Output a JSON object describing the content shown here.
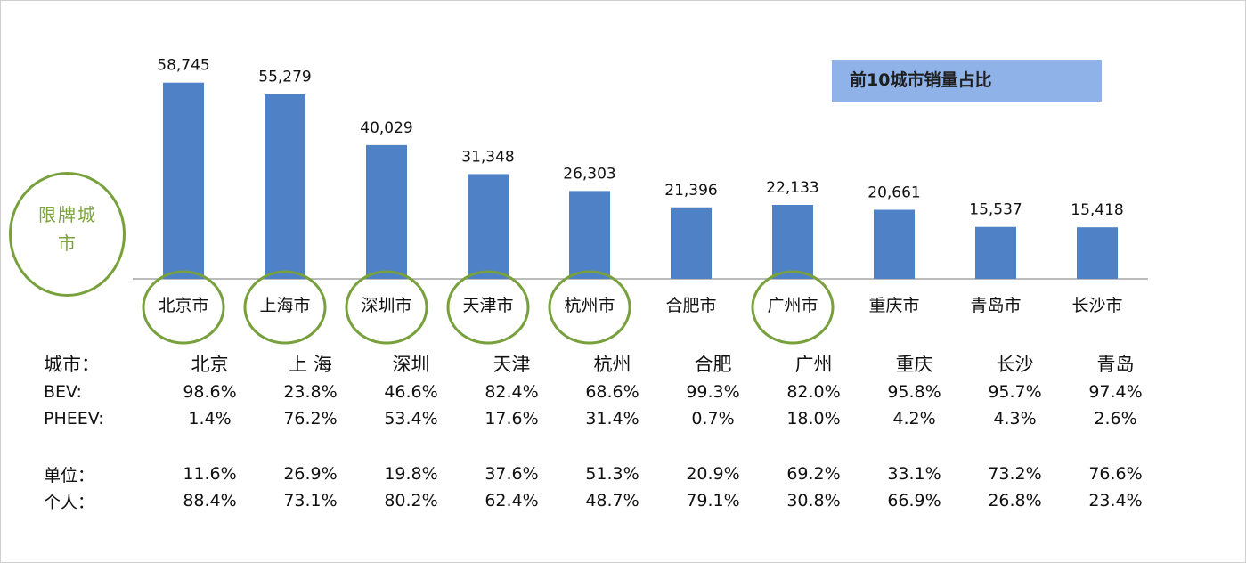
{
  "chart_data": {
    "type": "bar",
    "title": "前10城市销量占比",
    "categories": [
      "北京市",
      "上海市",
      "深圳市",
      "天津市",
      "杭州市",
      "合肥市",
      "广州市",
      "重庆市",
      "青岛市",
      "长沙市"
    ],
    "values": [
      58745,
      55279,
      40029,
      31348,
      26303,
      21396,
      22133,
      20661,
      15537,
      15418
    ],
    "data_labels": [
      "58,745",
      "55,279",
      "40,029",
      "31,348",
      "26,303",
      "21,396",
      "22,133",
      "20,661",
      "15,537",
      "15,418"
    ],
    "highlighted_categories": [
      "北京市",
      "上海市",
      "深圳市",
      "天津市",
      "杭州市",
      "广州市"
    ],
    "ylim": [
      0,
      64000
    ],
    "grid": false,
    "bar_color": "#4f81c7",
    "highlight_color": "#78a03c"
  },
  "annotation": {
    "restricted_label": "限牌城市"
  },
  "table": {
    "header_label": "城市：",
    "cities": [
      "北京",
      "上 海",
      "深圳",
      "天津",
      "杭州",
      "合肥",
      "广州",
      "重庆",
      "长沙",
      "青岛"
    ],
    "rows": [
      {
        "label": "BEV:",
        "values": [
          "98.6%",
          "23.8%",
          "46.6%",
          "82.4%",
          "68.6%",
          "99.3%",
          "82.0%",
          "95.8%",
          "95.7%",
          "97.4%"
        ]
      },
      {
        "label": "PHEEV:",
        "values": [
          "1.4%",
          "76.2%",
          "53.4%",
          "17.6%",
          "31.4%",
          "0.7%",
          "18.0%",
          "4.2%",
          "4.3%",
          "2.6%"
        ]
      },
      {
        "label": "单位：",
        "values": [
          "11.6%",
          "26.9%",
          "19.8%",
          "37.6%",
          "51.3%",
          "20.9%",
          "69.2%",
          "33.1%",
          "73.2%",
          "76.6%"
        ]
      },
      {
        "label": "个人：",
        "values": [
          "88.4%",
          "73.1%",
          "80.2%",
          "62.4%",
          "48.7%",
          "79.1%",
          "30.8%",
          "66.9%",
          "26.8%",
          "23.4%"
        ]
      }
    ]
  }
}
